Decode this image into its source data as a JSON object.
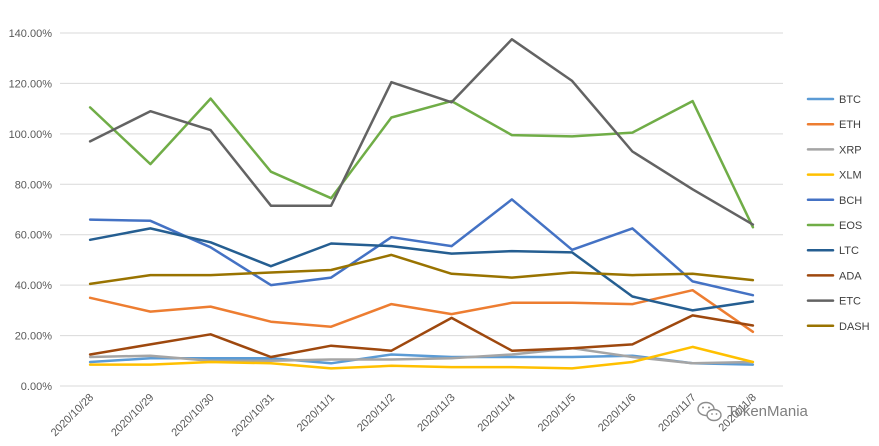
{
  "chart_data": {
    "type": "line",
    "title": "",
    "xlabel": "",
    "ylabel": "",
    "ylim": [
      0,
      140
    ],
    "y_tick_step": 20,
    "y_tick_format": "percent_2dp",
    "grid": "horizontal",
    "legend_position": "right",
    "categories": [
      "2020/10/28",
      "2020/10/29",
      "2020/10/30",
      "2020/10/31",
      "2020/11/1",
      "2020/11/2",
      "2020/11/3",
      "2020/11/4",
      "2020/11/5",
      "2020/11/6",
      "2020/11/7",
      "2020/11/8"
    ],
    "series": [
      {
        "name": "BTC",
        "color": "#5b9bd5",
        "values": [
          9.5,
          11,
          11,
          11,
          9,
          12.5,
          11.5,
          11.5,
          11.5,
          12,
          9,
          8.5
        ]
      },
      {
        "name": "ETH",
        "color": "#ed7d31",
        "values": [
          35,
          29.5,
          31.5,
          25.5,
          23.5,
          32.5,
          28.5,
          33,
          33,
          32.5,
          38,
          21.5
        ]
      },
      {
        "name": "XRP",
        "color": "#a5a5a5",
        "values": [
          11.5,
          12,
          10,
          10,
          10.5,
          10.5,
          11,
          12.5,
          15,
          11.5,
          9,
          9.5
        ]
      },
      {
        "name": "XLM",
        "color": "#ffc000",
        "values": [
          8.5,
          8.5,
          9.5,
          9,
          7,
          8,
          7.5,
          7.5,
          7,
          9.5,
          15.5,
          9.5
        ]
      },
      {
        "name": "BCH",
        "color": "#4472c4",
        "values": [
          66,
          65.5,
          55,
          40,
          43,
          59,
          55.5,
          74,
          54,
          62.5,
          41.5,
          36
        ]
      },
      {
        "name": "EOS",
        "color": "#70ad47",
        "values": [
          110.5,
          88,
          114,
          85,
          74.5,
          106.5,
          113,
          99.5,
          99,
          100.5,
          113,
          63
        ]
      },
      {
        "name": "LTC",
        "color": "#255e91",
        "values": [
          58,
          62.5,
          57,
          47.5,
          56.5,
          55.5,
          52.5,
          53.5,
          53,
          35.5,
          30,
          33.5
        ]
      },
      {
        "name": "ADA",
        "color": "#9e480e",
        "values": [
          12.5,
          16.5,
          20.5,
          11.5,
          16,
          14,
          27,
          14,
          15,
          16.5,
          28,
          24
        ]
      },
      {
        "name": "ETC",
        "color": "#636363",
        "values": [
          97,
          109,
          101.5,
          71.5,
          71.5,
          120.5,
          112.5,
          137.5,
          121,
          93,
          78,
          64
        ]
      },
      {
        "name": "DASH",
        "color": "#997300",
        "values": [
          40.5,
          44,
          44,
          45,
          46,
          52,
          44.5,
          43,
          45,
          44,
          44.5,
          42
        ]
      }
    ]
  },
  "watermark": {
    "text": "TokenMania",
    "icon": "wechat-icon"
  }
}
